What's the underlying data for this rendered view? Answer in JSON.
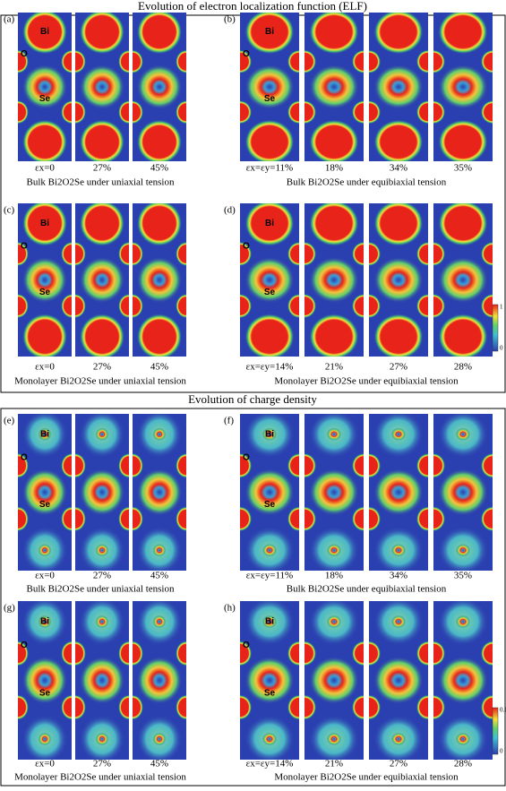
{
  "sections": [
    {
      "title": "Evolution of electron localization function (ELF)",
      "panels": [
        {
          "label": "(a)",
          "atoms": [
            "Bi",
            "O",
            "Se"
          ],
          "strains": [
            "εx=0",
            "27%",
            "45%"
          ],
          "caption": "Bulk Bi2O2Se under uniaxial tension"
        },
        {
          "label": "(b)",
          "atoms": [
            "Bi",
            "O",
            "Se"
          ],
          "strains": [
            "εx=εy=11%",
            "18%",
            "34%",
            "35%"
          ],
          "caption": "Bulk Bi2O2Se under equibiaxial tension"
        },
        {
          "label": "(c)",
          "atoms": [
            "Bi",
            "O",
            "Se"
          ],
          "strains": [
            "εx=0",
            "27%",
            "45%"
          ],
          "caption": "Monolayer Bi2O2Se under uniaxial tension"
        },
        {
          "label": "(d)",
          "atoms": [
            "Bi",
            "O",
            "Se"
          ],
          "strains": [
            "εx=εy=14%",
            "21%",
            "27%",
            "28%"
          ],
          "caption": "Monolayer Bi2O2Se under equibiaxial tension"
        }
      ],
      "colorbar": {
        "max": "1",
        "min": "0"
      }
    },
    {
      "title": "Evolution of charge density",
      "panels": [
        {
          "label": "(e)",
          "atoms": [
            "Bi",
            "O",
            "Se"
          ],
          "strains": [
            "εx=0",
            "27%",
            "45%"
          ],
          "caption": "Bulk Bi2O2Se under uniaxial tension"
        },
        {
          "label": "(f)",
          "atoms": [
            "Bi",
            "O",
            "Se"
          ],
          "strains": [
            "εx=εy=11%",
            "18%",
            "34%",
            "35%"
          ],
          "caption": "Bulk Bi2O2Se under equibiaxial tension"
        },
        {
          "label": "(g)",
          "atoms": [
            "Bi",
            "O",
            "Se"
          ],
          "strains": [
            "εx=0",
            "27%",
            "45%"
          ],
          "caption": "Monolayer Bi2O2Se under uniaxial tension"
        },
        {
          "label": "(h)",
          "atoms": [
            "Bi",
            "O",
            "Se"
          ],
          "strains": [
            "εx=εy=14%",
            "21%",
            "27%",
            "28%"
          ],
          "caption": "Monolayer Bi2O2Se under equibiaxial tension"
        }
      ],
      "colorbar": {
        "max": "0.1",
        "min": "0"
      }
    }
  ]
}
